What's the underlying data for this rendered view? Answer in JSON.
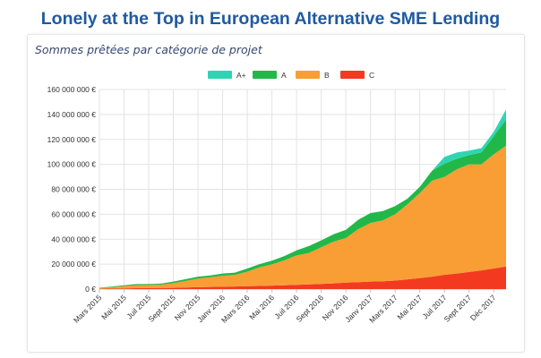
{
  "headline": "Lonely at the Top in European Alternative SME Lending",
  "chart_data": {
    "type": "area",
    "stacked": true,
    "title": "Sommes prêtées par catégorie de projet",
    "legend_position": "top-center",
    "grid": true,
    "ylim": [
      0,
      160000000
    ],
    "y_ticks": [
      0,
      20000000,
      40000000,
      60000000,
      80000000,
      100000000,
      120000000,
      140000000,
      160000000
    ],
    "y_tick_labels": [
      "0 €",
      "20 000 000 €",
      "40 000 000 €",
      "60 000 000 €",
      "80 000 000 €",
      "100 000 000 €",
      "120 000 000 €",
      "140 000 000 €",
      "160 000 000 €"
    ],
    "x_tick_labels": [
      "Mars 2015",
      "Mai 2015",
      "Juil 2015",
      "Sept 2015",
      "Nov 2015",
      "Janv 2016",
      "Mars 2016",
      "Mai 2016",
      "Juil 2016",
      "Sept 2016",
      "Nov 2016",
      "Janv 2017",
      "Mars 2017",
      "Mai 2017",
      "Juil 2017",
      "Sept 2017",
      "Déc 2017"
    ],
    "x": [
      "Mars 2015",
      "Avr 2015",
      "Mai 2015",
      "Juin 2015",
      "Juil 2015",
      "Août 2015",
      "Sept 2015",
      "Oct 2015",
      "Nov 2015",
      "Déc 2015",
      "Janv 2016",
      "Févr 2016",
      "Mars 2016",
      "Avr 2016",
      "Mai 2016",
      "Juin 2016",
      "Juil 2016",
      "Août 2016",
      "Sept 2016",
      "Oct 2016",
      "Nov 2016",
      "Déc 2016",
      "Janv 2017",
      "Févr 2017",
      "Mars 2017",
      "Avr 2017",
      "Mai 2017",
      "Juin 2017",
      "Juil 2017",
      "Août 2017",
      "Sept 2017",
      "Oct 2017",
      "Nov 2017",
      "Déc 2017"
    ],
    "series": [
      {
        "name": "C",
        "color": "#f33a20",
        "values": [
          200000,
          400000,
          500000,
          700000,
          800000,
          900000,
          1000000,
          1200000,
          1500000,
          1700000,
          1900000,
          2100000,
          2300000,
          2500000,
          2800000,
          3000000,
          3400000,
          3700000,
          4100000,
          4600000,
          5200000,
          5600000,
          6000000,
          6300000,
          6800000,
          7800000,
          8800000,
          10000000,
          11500000,
          12500000,
          13700000,
          15000000,
          16500000,
          18000000
        ]
      },
      {
        "name": "B",
        "color": "#f99d35",
        "values": [
          500000,
          1200000,
          1800000,
          2300000,
          2400000,
          2700000,
          3700000,
          5300000,
          7000000,
          7800000,
          8800000,
          9300000,
          11700000,
          15000000,
          17000000,
          20000000,
          23600000,
          25300000,
          29400000,
          33400000,
          35800000,
          42400000,
          47000000,
          48700000,
          53200000,
          60200000,
          68200000,
          77000000,
          78500000,
          83500000,
          86300000,
          85000000,
          91500000,
          97000000
        ]
      },
      {
        "name": "A",
        "color": "#22b849",
        "values": [
          400000,
          500000,
          700000,
          1000000,
          800000,
          800000,
          1300000,
          1500000,
          1500000,
          1500000,
          1800000,
          1800000,
          2500000,
          2500000,
          3000000,
          3500000,
          4000000,
          5500000,
          5500000,
          6000000,
          6500000,
          7500000,
          8000000,
          7500000,
          6500000,
          4500000,
          5000000,
          8000000,
          10500000,
          8500000,
          7500000,
          9500000,
          14500000,
          21000000
        ]
      },
      {
        "name": "A+",
        "color": "#2fd5b3",
        "values": [
          0,
          0,
          0,
          0,
          0,
          0,
          0,
          0,
          0,
          0,
          0,
          0,
          0,
          0,
          0,
          0,
          0,
          0,
          0,
          0,
          0,
          0,
          0,
          0,
          0,
          0,
          0,
          0,
          5500000,
          5000000,
          3500000,
          3500000,
          3500000,
          8000000
        ]
      }
    ]
  },
  "legend_order": [
    "A+",
    "A",
    "B",
    "C"
  ]
}
